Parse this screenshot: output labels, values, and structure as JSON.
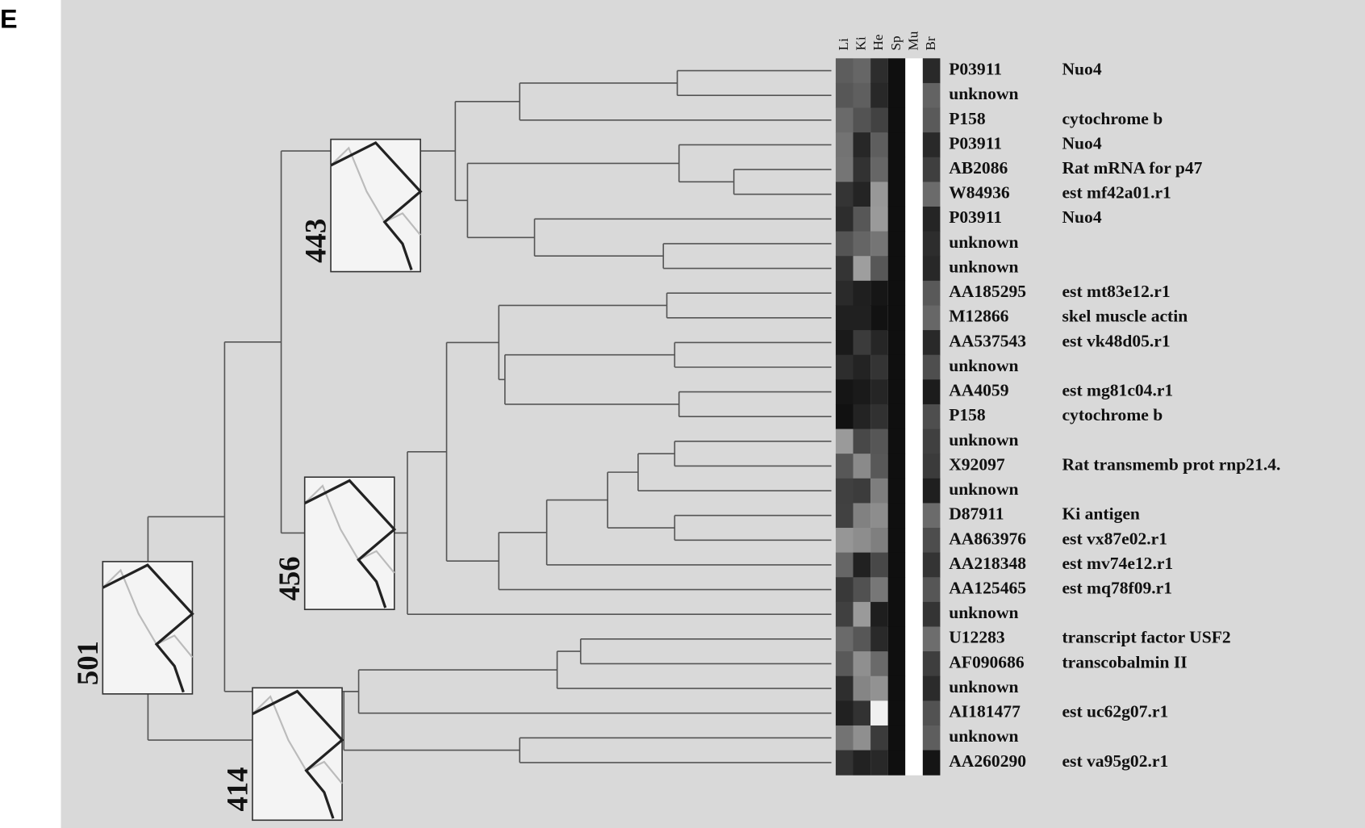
{
  "panel": "E",
  "columns": [
    "Li",
    "Ki",
    "He",
    "Sp",
    "Mu",
    "Br"
  ],
  "rows": [
    {
      "id": "P03911",
      "desc": "Nuo4"
    },
    {
      "id": "unknown"
    },
    {
      "id": "P158",
      "desc": "cytochrome b"
    },
    {
      "id": "P03911",
      "desc": "Nuo4"
    },
    {
      "id": "AB2086",
      "desc": "Rat mRNA for p47"
    },
    {
      "id": "W84936",
      "desc": "est mf42a01.r1"
    },
    {
      "id": "P03911",
      "desc": "Nuo4"
    },
    {
      "id": "unknown"
    },
    {
      "id": "unknown"
    },
    {
      "id": "AA185295",
      "desc": "est mt83e12.r1"
    },
    {
      "id": "M12866",
      "desc": "skel muscle actin"
    },
    {
      "id": "AA537543",
      "desc": "est vk48d05.r1"
    },
    {
      "id": "unknown"
    },
    {
      "id": "AA4059",
      "desc": "est mg81c04.r1"
    },
    {
      "id": "P158",
      "desc": "cytochrome b"
    },
    {
      "id": "unknown"
    },
    {
      "id": "X92097",
      "desc": "Rat transmemb prot rnp21.4."
    },
    {
      "id": "unknown"
    },
    {
      "id": "D87911",
      "desc": "Ki antigen"
    },
    {
      "id": "AA863976",
      "desc": "est vx87e02.r1"
    },
    {
      "id": "AA218348",
      "desc": "est mv74e12.r1"
    },
    {
      "id": "AA125465",
      "desc": "est mq78f09.r1"
    },
    {
      "id": "unknown"
    },
    {
      "id": "U12283",
      "desc": "transcript factor USF2"
    },
    {
      "id": "AF090686",
      "desc": "transcobalmin II"
    },
    {
      "id": "unknown"
    },
    {
      "id": "AI181477",
      "desc": "est uc62g07.r1"
    },
    {
      "id": "unknown"
    },
    {
      "id": "AA260290",
      "desc": "est va95g02.r1"
    }
  ],
  "clusters": [
    443,
    456,
    501,
    414
  ]
}
